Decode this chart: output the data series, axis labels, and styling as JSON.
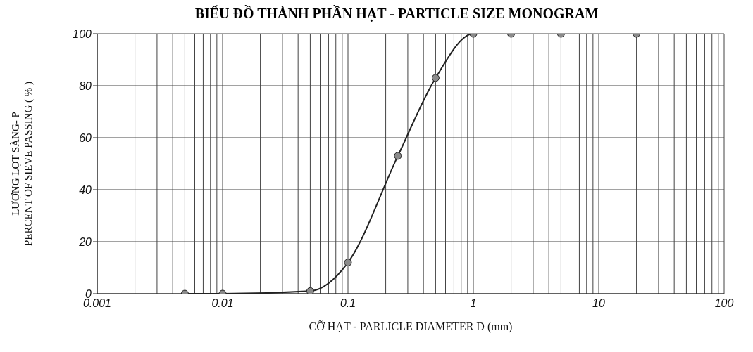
{
  "chart_data": {
    "type": "line",
    "title": "BIỂU ĐỒ THÀNH PHẦN HẠT - PARTICLE SIZE MONOGRAM",
    "xlabel": "CỠ HẠT - PARLICLE DIAMETER  D (mm)",
    "ylabel": "LƯỢNG LỌT SÀNG- P\nPERCENT OF SIEVE PASSING ( % )",
    "log": "x",
    "grid": true,
    "marker": "circle",
    "line_style": "solid",
    "x": [
      0.005,
      0.01,
      0.05,
      0.1,
      0.25,
      0.5,
      1,
      2,
      5,
      20
    ],
    "series": [
      {
        "color": "#222222",
        "values": [
          0,
          0,
          1,
          12,
          53,
          83,
          100,
          100,
          100,
          100
        ]
      }
    ],
    "xlim": [
      0.001,
      100
    ],
    "xticks": [
      0.001,
      {
        "value": 0.002,
        "label": null
      },
      {
        "value": 0.003,
        "label": null
      },
      {
        "value": 0.004,
        "label": null
      },
      {
        "value": 0.005,
        "label": null
      },
      {
        "value": 0.006,
        "label": null
      },
      {
        "value": 0.007,
        "label": null
      },
      {
        "value": 0.008,
        "label": null
      },
      {
        "value": 0.009,
        "label": null
      },
      0.01,
      {
        "value": 0.02,
        "label": null
      },
      {
        "value": 0.03,
        "label": null
      },
      {
        "value": 0.04,
        "label": null
      },
      {
        "value": 0.05,
        "label": null
      },
      {
        "value": 0.06,
        "label": null
      },
      {
        "value": 0.07,
        "label": null
      },
      {
        "value": 0.08,
        "label": null
      },
      {
        "value": 0.09,
        "label": null
      },
      0.1,
      {
        "value": 0.2,
        "label": null
      },
      {
        "value": 0.3,
        "label": null
      },
      {
        "value": 0.4,
        "label": null
      },
      {
        "value": 0.5,
        "label": null
      },
      {
        "value": 0.6,
        "label": null
      },
      {
        "value": 0.7,
        "label": null
      },
      {
        "value": 0.8,
        "label": null
      },
      {
        "value": 0.9,
        "label": null
      },
      1,
      {
        "value": 2,
        "label": null
      },
      {
        "value": 3,
        "label": null
      },
      {
        "value": 4,
        "label": null
      },
      {
        "value": 5,
        "label": null
      },
      {
        "value": 6,
        "label": null
      },
      {
        "value": 7,
        "label": null
      },
      {
        "value": 8,
        "label": null
      },
      {
        "value": 9,
        "label": null
      },
      10,
      {
        "value": 20,
        "label": null
      },
      {
        "value": 30,
        "label": null
      },
      {
        "value": 40,
        "label": null
      },
      {
        "value": 50,
        "label": null
      },
      {
        "value": 60,
        "label": null
      },
      {
        "value": 70,
        "label": null
      },
      {
        "value": 80,
        "label": null
      },
      {
        "value": 90,
        "label": null
      },
      100
    ],
    "ylim": [
      0,
      100
    ],
    "yticks": [
      0,
      20,
      40,
      60,
      80,
      100
    ]
  }
}
